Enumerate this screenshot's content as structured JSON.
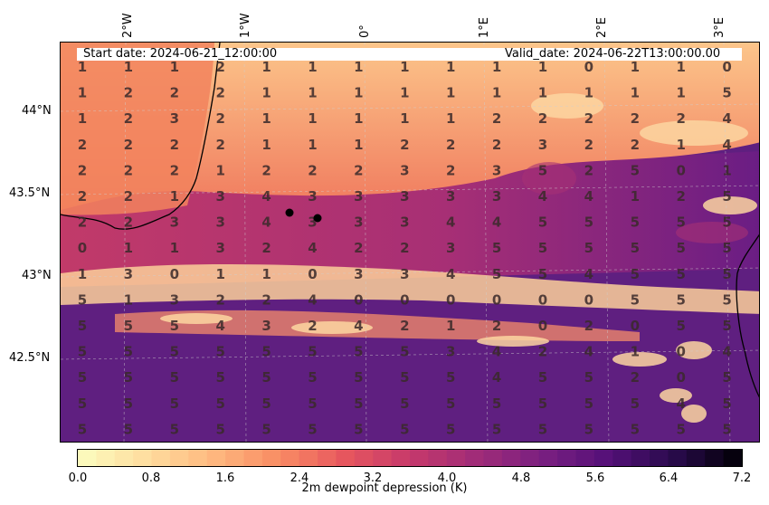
{
  "chart_data": {
    "type": "heatmap",
    "variable_label": "2m dewpoint depression (K)",
    "start_date": "Start date: 2024-06-21_12:00:00",
    "valid_date": "Valid_date: 2024-06-22T13:00:00.00",
    "lon_ticks": [
      "2°W",
      "1°W",
      "0°",
      "1°E",
      "2°E",
      "3°E"
    ],
    "lat_ticks": [
      "44°N",
      "43.5°N",
      "43°N",
      "42.5°N"
    ],
    "colorbar": {
      "colormap": "magma_r",
      "min": 0.0,
      "max": 7.2,
      "tick_labels": [
        "0.0",
        "0.8",
        "1.6",
        "2.4",
        "3.2",
        "4.0",
        "4.8",
        "5.6",
        "6.4",
        "7.2"
      ]
    },
    "grid_values": [
      [
        "1",
        "1",
        "1",
        "2",
        "1",
        "1",
        "1",
        "1",
        "1",
        "1",
        "1",
        "0",
        "1",
        "1",
        "0"
      ],
      [
        "1",
        "2",
        "2",
        "2",
        "1",
        "1",
        "1",
        "1",
        "1",
        "1",
        "1",
        "1",
        "1",
        "1",
        "5"
      ],
      [
        "1",
        "2",
        "3",
        "2",
        "1",
        "1",
        "1",
        "1",
        "1",
        "2",
        "2",
        "2",
        "2",
        "2",
        "4"
      ],
      [
        "2",
        "2",
        "2",
        "2",
        "1",
        "1",
        "1",
        "2",
        "2",
        "2",
        "3",
        "2",
        "2",
        "1",
        "4"
      ],
      [
        "2",
        "2",
        "2",
        "1",
        "2",
        "2",
        "2",
        "3",
        "2",
        "3",
        "5",
        "2",
        "5",
        "0",
        "1"
      ],
      [
        "2",
        "2",
        "1",
        "3",
        "4",
        "3",
        "3",
        "3",
        "3",
        "3",
        "4",
        "4",
        "1",
        "2",
        "5"
      ],
      [
        "2",
        "2",
        "3",
        "3",
        "4",
        "3",
        "3",
        "3",
        "4",
        "4",
        "5",
        "5",
        "5",
        "5",
        "5"
      ],
      [
        "0",
        "1",
        "1",
        "3",
        "2",
        "4",
        "2",
        "2",
        "3",
        "5",
        "5",
        "5",
        "5",
        "5",
        "5"
      ],
      [
        "1",
        "3",
        "0",
        "1",
        "1",
        "0",
        "3",
        "3",
        "4",
        "5",
        "5",
        "4",
        "5",
        "5",
        "5"
      ],
      [
        "5",
        "1",
        "3",
        "2",
        "2",
        "4",
        "0",
        "0",
        "0",
        "0",
        "0",
        "0",
        "5",
        "5",
        "5"
      ],
      [
        "5",
        "5",
        "5",
        "4",
        "3",
        "2",
        "4",
        "2",
        "1",
        "2",
        "0",
        "2",
        "0",
        "5",
        "5"
      ],
      [
        "5",
        "5",
        "5",
        "5",
        "5",
        "5",
        "5",
        "5",
        "3",
        "4",
        "2",
        "4",
        "1",
        "0",
        "4"
      ],
      [
        "5",
        "5",
        "5",
        "5",
        "5",
        "5",
        "5",
        "5",
        "5",
        "4",
        "5",
        "5",
        "2",
        "0",
        "5"
      ],
      [
        "5",
        "5",
        "5",
        "5",
        "5",
        "5",
        "5",
        "5",
        "5",
        "5",
        "5",
        "5",
        "5",
        "4",
        "5"
      ],
      [
        "5",
        "5",
        "5",
        "5",
        "5",
        "5",
        "5",
        "5",
        "5",
        "5",
        "5",
        "5",
        "5",
        "5",
        "5"
      ]
    ],
    "markers": [
      "station-1",
      "station-2"
    ]
  }
}
